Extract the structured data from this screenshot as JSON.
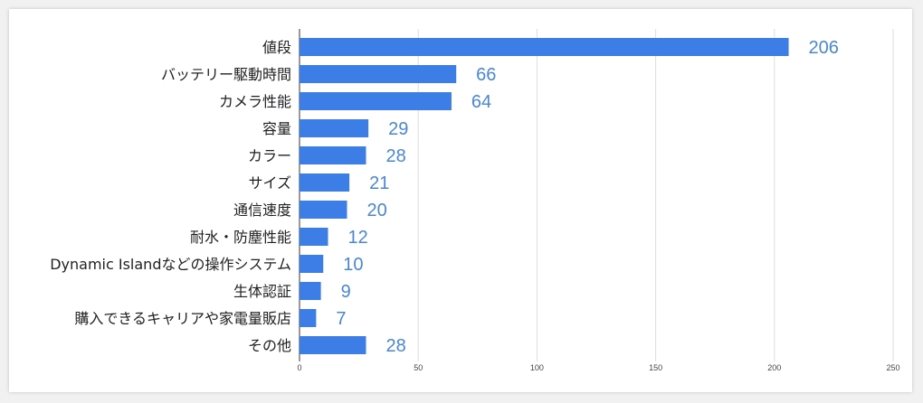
{
  "chart_data": {
    "type": "bar",
    "orientation": "horizontal",
    "title": "",
    "xlabel": "",
    "ylabel": "",
    "categories": [
      "値段",
      "バッテリー駆動時間",
      "カメラ性能",
      "容量",
      "カラー",
      "サイズ",
      "通信速度",
      "耐水・防塵性能",
      "Dynamic Islandなどの操作システム",
      "生体認証",
      "購入できるキャリアや家電量販店",
      "その他"
    ],
    "values": [
      206,
      66,
      64,
      29,
      28,
      21,
      20,
      12,
      10,
      9,
      7,
      28
    ],
    "xlim": [
      0,
      250
    ],
    "xticks": [
      0,
      50,
      100,
      150,
      200,
      250
    ],
    "grid": true,
    "legend": "none",
    "colors": {
      "bar": "#3d7de6",
      "value_label": "#4a86d8",
      "grid": "#dddddd",
      "axis": "#333333"
    }
  }
}
